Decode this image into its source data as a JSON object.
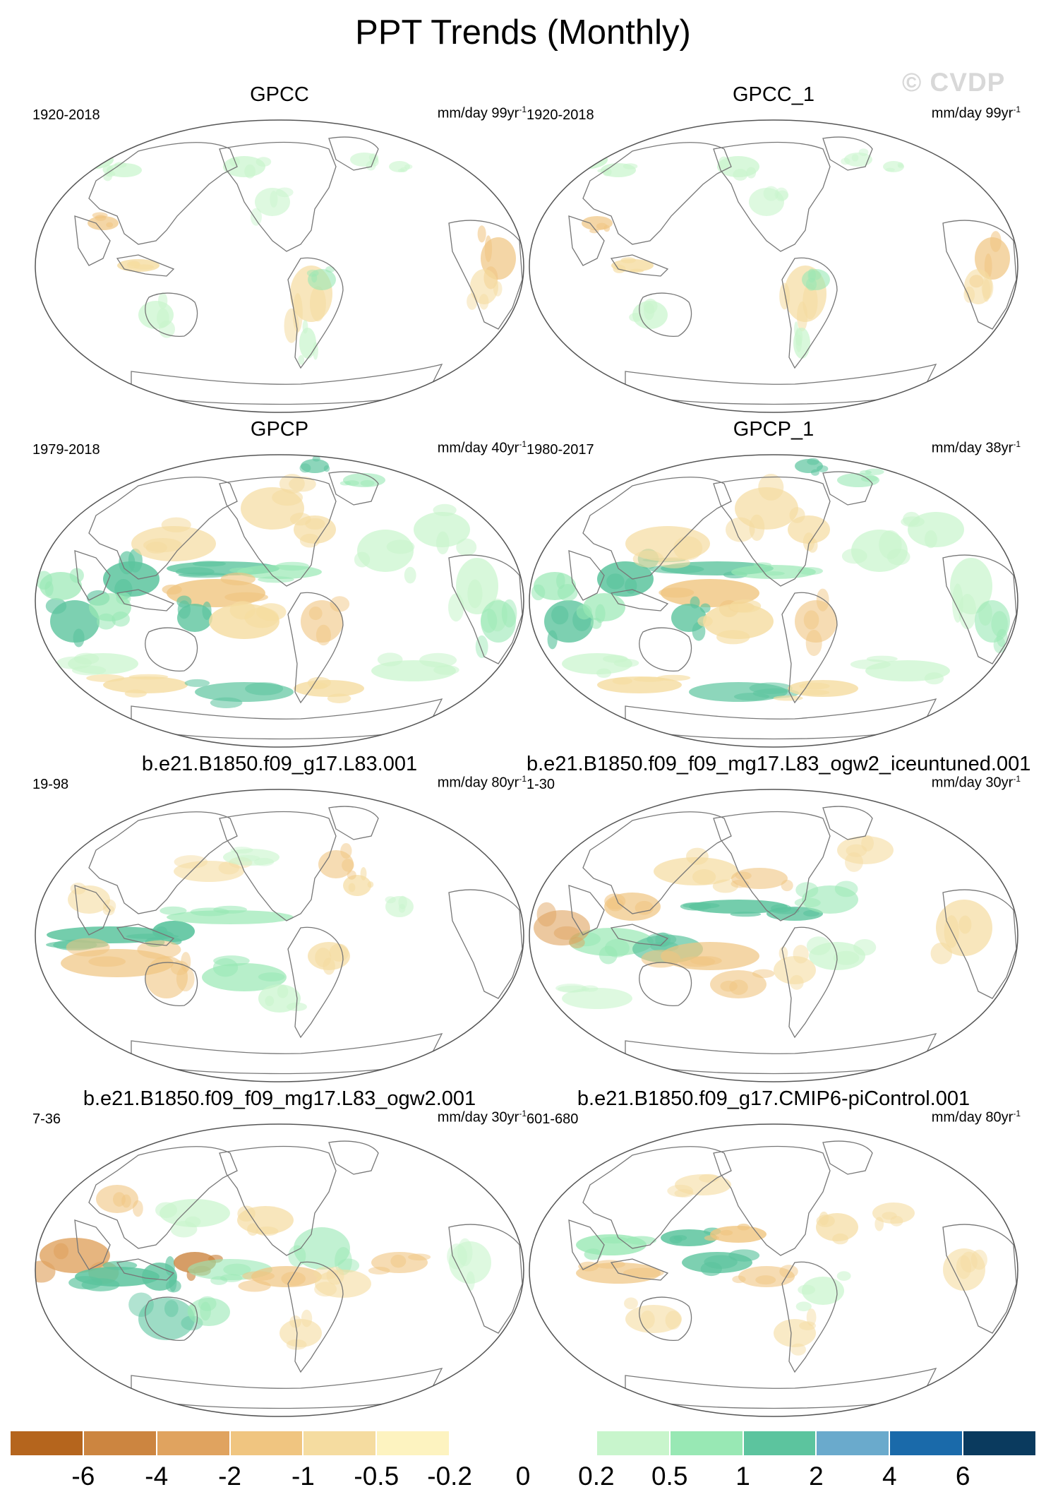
{
  "figure": {
    "title": "PPT Trends (Monthly)",
    "watermark": "© CVDP"
  },
  "panels": [
    {
      "title": "GPCC",
      "period": "1920-2018",
      "units": "mm/day 99yr",
      "units_exp": "-1",
      "pattern": "obs_sparse"
    },
    {
      "title": "GPCC_1",
      "period": "1920-2018",
      "units": "mm/day 99yr",
      "units_exp": "-1",
      "pattern": "obs_sparse"
    },
    {
      "title": "GPCP",
      "period": "1979-2018",
      "units": "mm/day 40yr",
      "units_exp": "-1",
      "pattern": "obs_dense"
    },
    {
      "title": "GPCP_1",
      "period": "1980-2017",
      "units": "mm/day 38yr",
      "units_exp": "-1",
      "pattern": "obs_dense"
    },
    {
      "title": "b.e21.B1850.f09_g17.L83.001",
      "period": "19-98",
      "units": "mm/day 80yr",
      "units_exp": "-1",
      "pattern": "model_a"
    },
    {
      "title": "b.e21.B1850.f09_f09_mg17.L83_ogw2_iceuntuned.001",
      "period": "1-30",
      "units": "mm/day 30yr",
      "units_exp": "-1",
      "pattern": "model_b"
    },
    {
      "title": "b.e21.B1850.f09_f09_mg17.L83_ogw2.001",
      "period": "7-36",
      "units": "mm/day 30yr",
      "units_exp": "-1",
      "pattern": "model_c"
    },
    {
      "title": "b.e21.B1850.f09_g17.CMIP6-piControl.001",
      "period": "601-680",
      "units": "mm/day 80yr",
      "units_exp": "-1",
      "pattern": "model_d"
    }
  ],
  "colorbar": {
    "labels": [
      "-6",
      "-4",
      "-2",
      "-1",
      "-0.5",
      "-0.2",
      "0",
      "0.2",
      "0.5",
      "1",
      "2",
      "4",
      "6"
    ],
    "colors": [
      "#b5651d",
      "#cc8540",
      "#e0a35f",
      "#f0c580",
      "#f5dca0",
      "#fdf3c0",
      "#ffffff",
      "#ffffff",
      "#c8f5cc",
      "#98e8b4",
      "#5cc49e",
      "#6aaacc",
      "#1a6aaa",
      "#0a3a5e"
    ]
  },
  "colors": {
    "brown_dark": "#cc8540",
    "brown": "#e0a35f",
    "tan": "#f0c580",
    "cream": "#f5dca0",
    "green_light": "#c8f5cc",
    "green": "#98e8b4",
    "teal": "#5cc49e",
    "outline": "#777777"
  }
}
